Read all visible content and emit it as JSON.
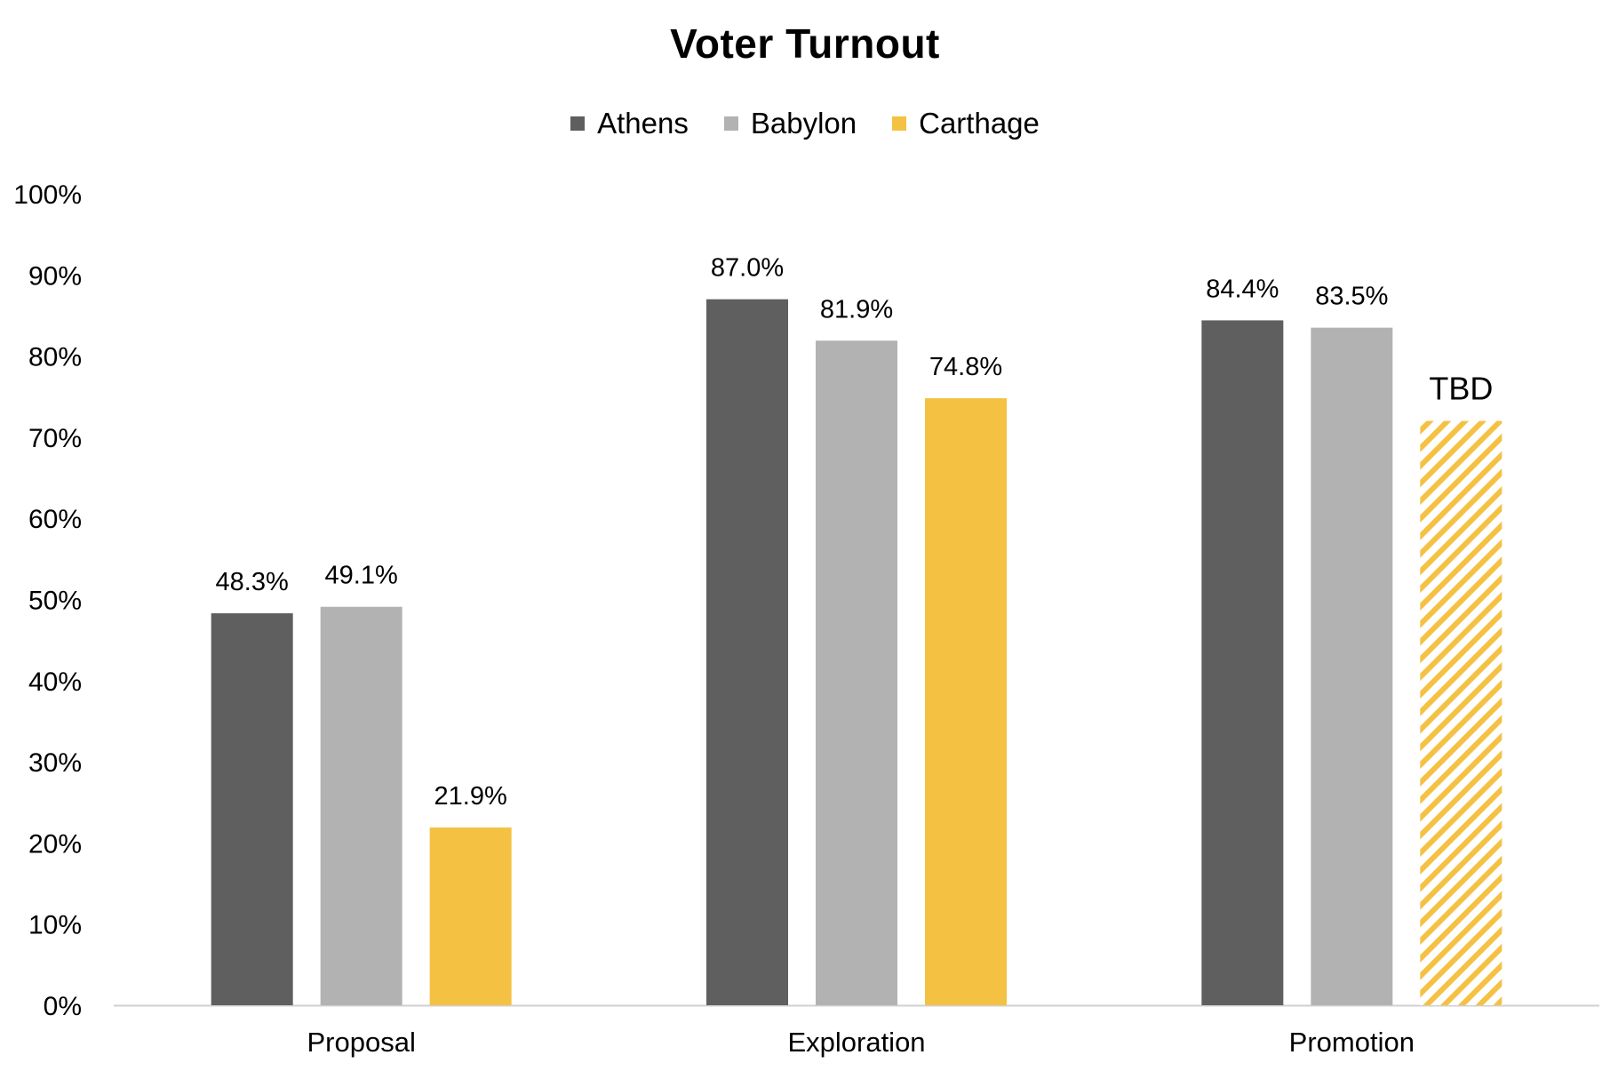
{
  "chart_data": {
    "type": "bar",
    "title": "Voter Turnout",
    "categories": [
      "Proposal",
      "Exploration",
      "Promotion"
    ],
    "series": [
      {
        "name": "Athens",
        "color": "#5f5f5f",
        "values": [
          48.3,
          87.0,
          84.4
        ],
        "labels": [
          "48.3%",
          "87.0%",
          "84.4%"
        ]
      },
      {
        "name": "Babylon",
        "color": "#b2b2b2",
        "values": [
          49.1,
          81.9,
          83.5
        ],
        "labels": [
          "49.1%",
          "81.9%",
          "83.5%"
        ]
      },
      {
        "name": "Carthage",
        "color": "#f4c142",
        "values": [
          21.9,
          74.8,
          null
        ],
        "labels": [
          "21.9%",
          "74.8%",
          "TBD"
        ],
        "placeholder": {
          "category": "Promotion",
          "value": 72,
          "style": "hatched",
          "label": "TBD"
        }
      }
    ],
    "yticks": [
      "0%",
      "10%",
      "20%",
      "30%",
      "40%",
      "50%",
      "60%",
      "70%",
      "80%",
      "90%",
      "100%"
    ],
    "ylim": [
      0,
      100
    ],
    "xlabel": "",
    "ylabel": "",
    "legend": "top-center",
    "grid": false
  }
}
